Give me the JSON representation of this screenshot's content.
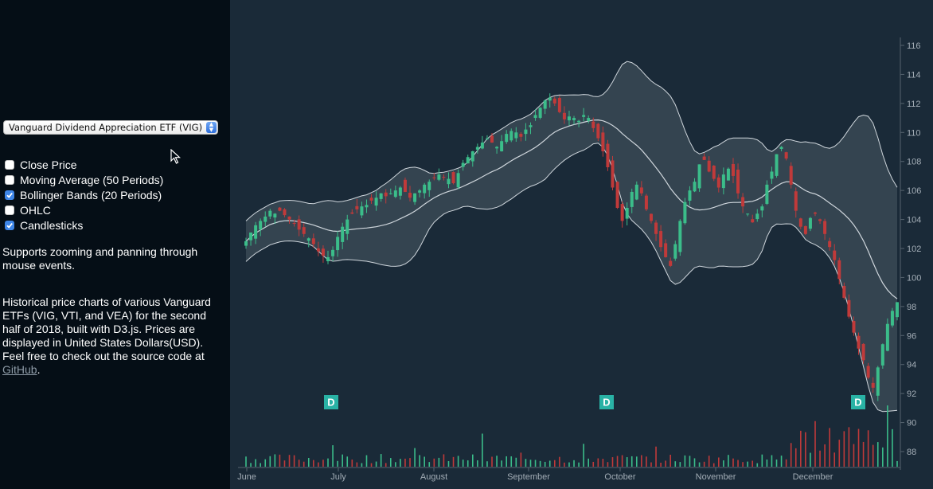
{
  "sidebar": {
    "select_value": "Vanguard Dividend Appreciation ETF (VIG)",
    "options": [
      {
        "label": "Close Price",
        "checked": false
      },
      {
        "label": "Moving Average (50 Periods)",
        "checked": false
      },
      {
        "label": "Bollinger Bands (20 Periods)",
        "checked": true
      },
      {
        "label": "OHLC",
        "checked": false
      },
      {
        "label": "Candlesticks",
        "checked": true
      }
    ],
    "zoom_note": "Supports zooming and panning through mouse events.",
    "description": "Historical price charts of various Vanguard ETFs (VIG, VTI, and VEA) for the second half of 2018, built with D3.js. Prices are displayed in United States Dollars(USD). Feel free to check out the source code at",
    "link_text": "GitHub",
    "link_end": "."
  },
  "colors": {
    "background": "#1a2a38",
    "sidebar": "#050e16",
    "up": "#3bbd8a",
    "down": "#c03a3a",
    "band_fill": "#394955",
    "band_line": "#cfd6dc",
    "axis_text": "#a3adb6",
    "marker": "#29b2a5"
  },
  "chart_data": {
    "type": "candlestick",
    "x_range": [
      "2018-06-27",
      "2018-12-31"
    ],
    "x_ticks": [
      "June",
      "July",
      "August",
      "September",
      "October",
      "November",
      "December"
    ],
    "y_range": [
      87,
      117
    ],
    "y_ticks": [
      88,
      90,
      92,
      94,
      96,
      98,
      100,
      102,
      104,
      106,
      108,
      110,
      112,
      114,
      116
    ],
    "close": [
      102.5,
      103.1,
      103.6,
      103.9,
      104.2,
      104.6,
      104.4,
      104.6,
      104.3,
      104.0,
      103.7,
      103.3,
      103.0,
      102.7,
      102.3,
      101.8,
      101.5,
      101.4,
      101.9,
      102.8,
      103.5,
      104.0,
      104.4,
      104.7,
      104.9,
      105.0,
      105.3,
      105.5,
      105.8,
      105.6,
      105.8,
      106.0,
      106.2,
      105.9,
      105.5,
      105.8,
      106.0,
      106.4,
      106.6,
      106.9,
      107.1,
      106.9,
      106.8,
      106.5,
      107.2,
      107.9,
      108.3,
      108.7,
      109.0,
      109.3,
      109.6,
      109.3,
      109.0,
      109.4,
      109.9,
      110.1,
      110.0,
      109.7,
      110.2,
      110.5,
      111.2,
      111.7,
      112.2,
      112.4,
      112.0,
      111.4,
      110.9,
      111.1,
      111.0,
      110.8,
      111.2,
      111.0,
      110.3,
      109.6,
      108.7,
      107.6,
      106.2,
      104.8,
      103.9,
      104.8,
      105.9,
      106.4,
      105.8,
      104.7,
      103.9,
      103.0,
      102.1,
      101.4,
      100.8,
      102.3,
      103.9,
      105.2,
      106.0,
      106.6,
      107.8,
      108.1,
      107.3,
      106.8,
      106.2,
      107.1,
      107.5,
      107.0,
      105.8,
      104.9,
      104.4,
      103.8,
      104.4,
      104.9,
      106.4,
      107.3,
      108.5,
      109.0,
      108.2,
      106.4,
      104.6,
      103.5,
      103.0,
      104.1,
      104.4,
      103.9,
      103.0,
      102.1,
      101.2,
      99.9,
      98.6,
      97.3,
      96.2,
      95.1,
      94.3,
      93.1,
      92.4,
      93.8,
      95.4,
      96.8,
      97.7,
      98.3
    ],
    "volume_max": 16
  }
}
